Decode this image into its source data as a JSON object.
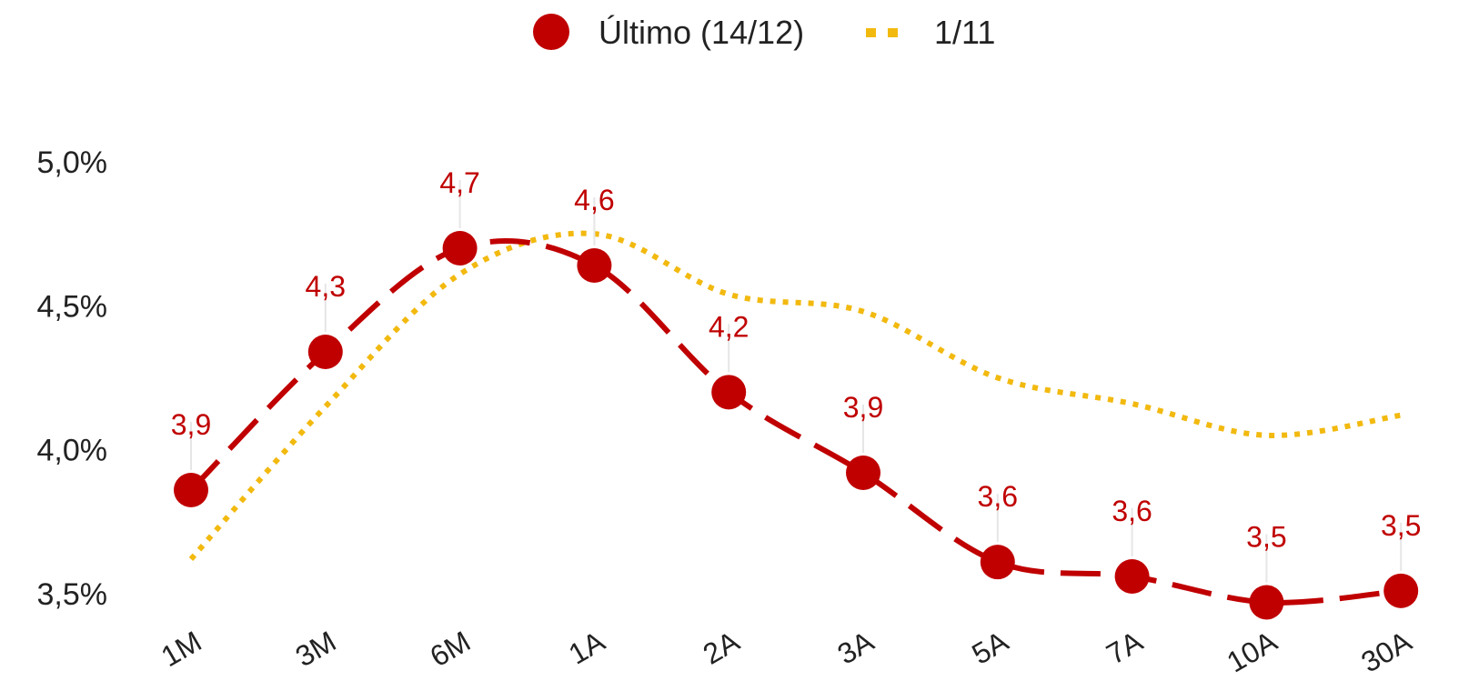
{
  "chart_data": {
    "type": "line",
    "categories": [
      "1M",
      "3M",
      "6M",
      "1A",
      "2A",
      "3A",
      "5A",
      "7A",
      "10A",
      "30A"
    ],
    "series": [
      {
        "name": "Último (14/12)",
        "values": [
          3.86,
          4.34,
          4.7,
          4.64,
          4.2,
          3.92,
          3.61,
          3.56,
          3.47,
          3.51
        ],
        "labels": [
          "3,9",
          "4,3",
          "4,7",
          "4,6",
          "4,2",
          "3,9",
          "3,6",
          "3,6",
          "3,5",
          "3,5"
        ],
        "color": "#c00000",
        "style": "dashed",
        "markers": true
      },
      {
        "name": "1/11",
        "values": [
          3.62,
          4.15,
          4.61,
          4.75,
          4.54,
          4.48,
          4.25,
          4.16,
          4.05,
          4.12
        ],
        "color": "#f2b90f",
        "style": "dotted",
        "markers": false
      }
    ],
    "yticks": [
      3.5,
      4.0,
      4.5,
      5.0
    ],
    "ytick_labels": [
      "3,5%",
      "4,0%",
      "4,5%",
      "5,0%"
    ],
    "ylim": [
      3.5,
      5.0
    ],
    "legend_position": "top-center",
    "grid": false
  }
}
